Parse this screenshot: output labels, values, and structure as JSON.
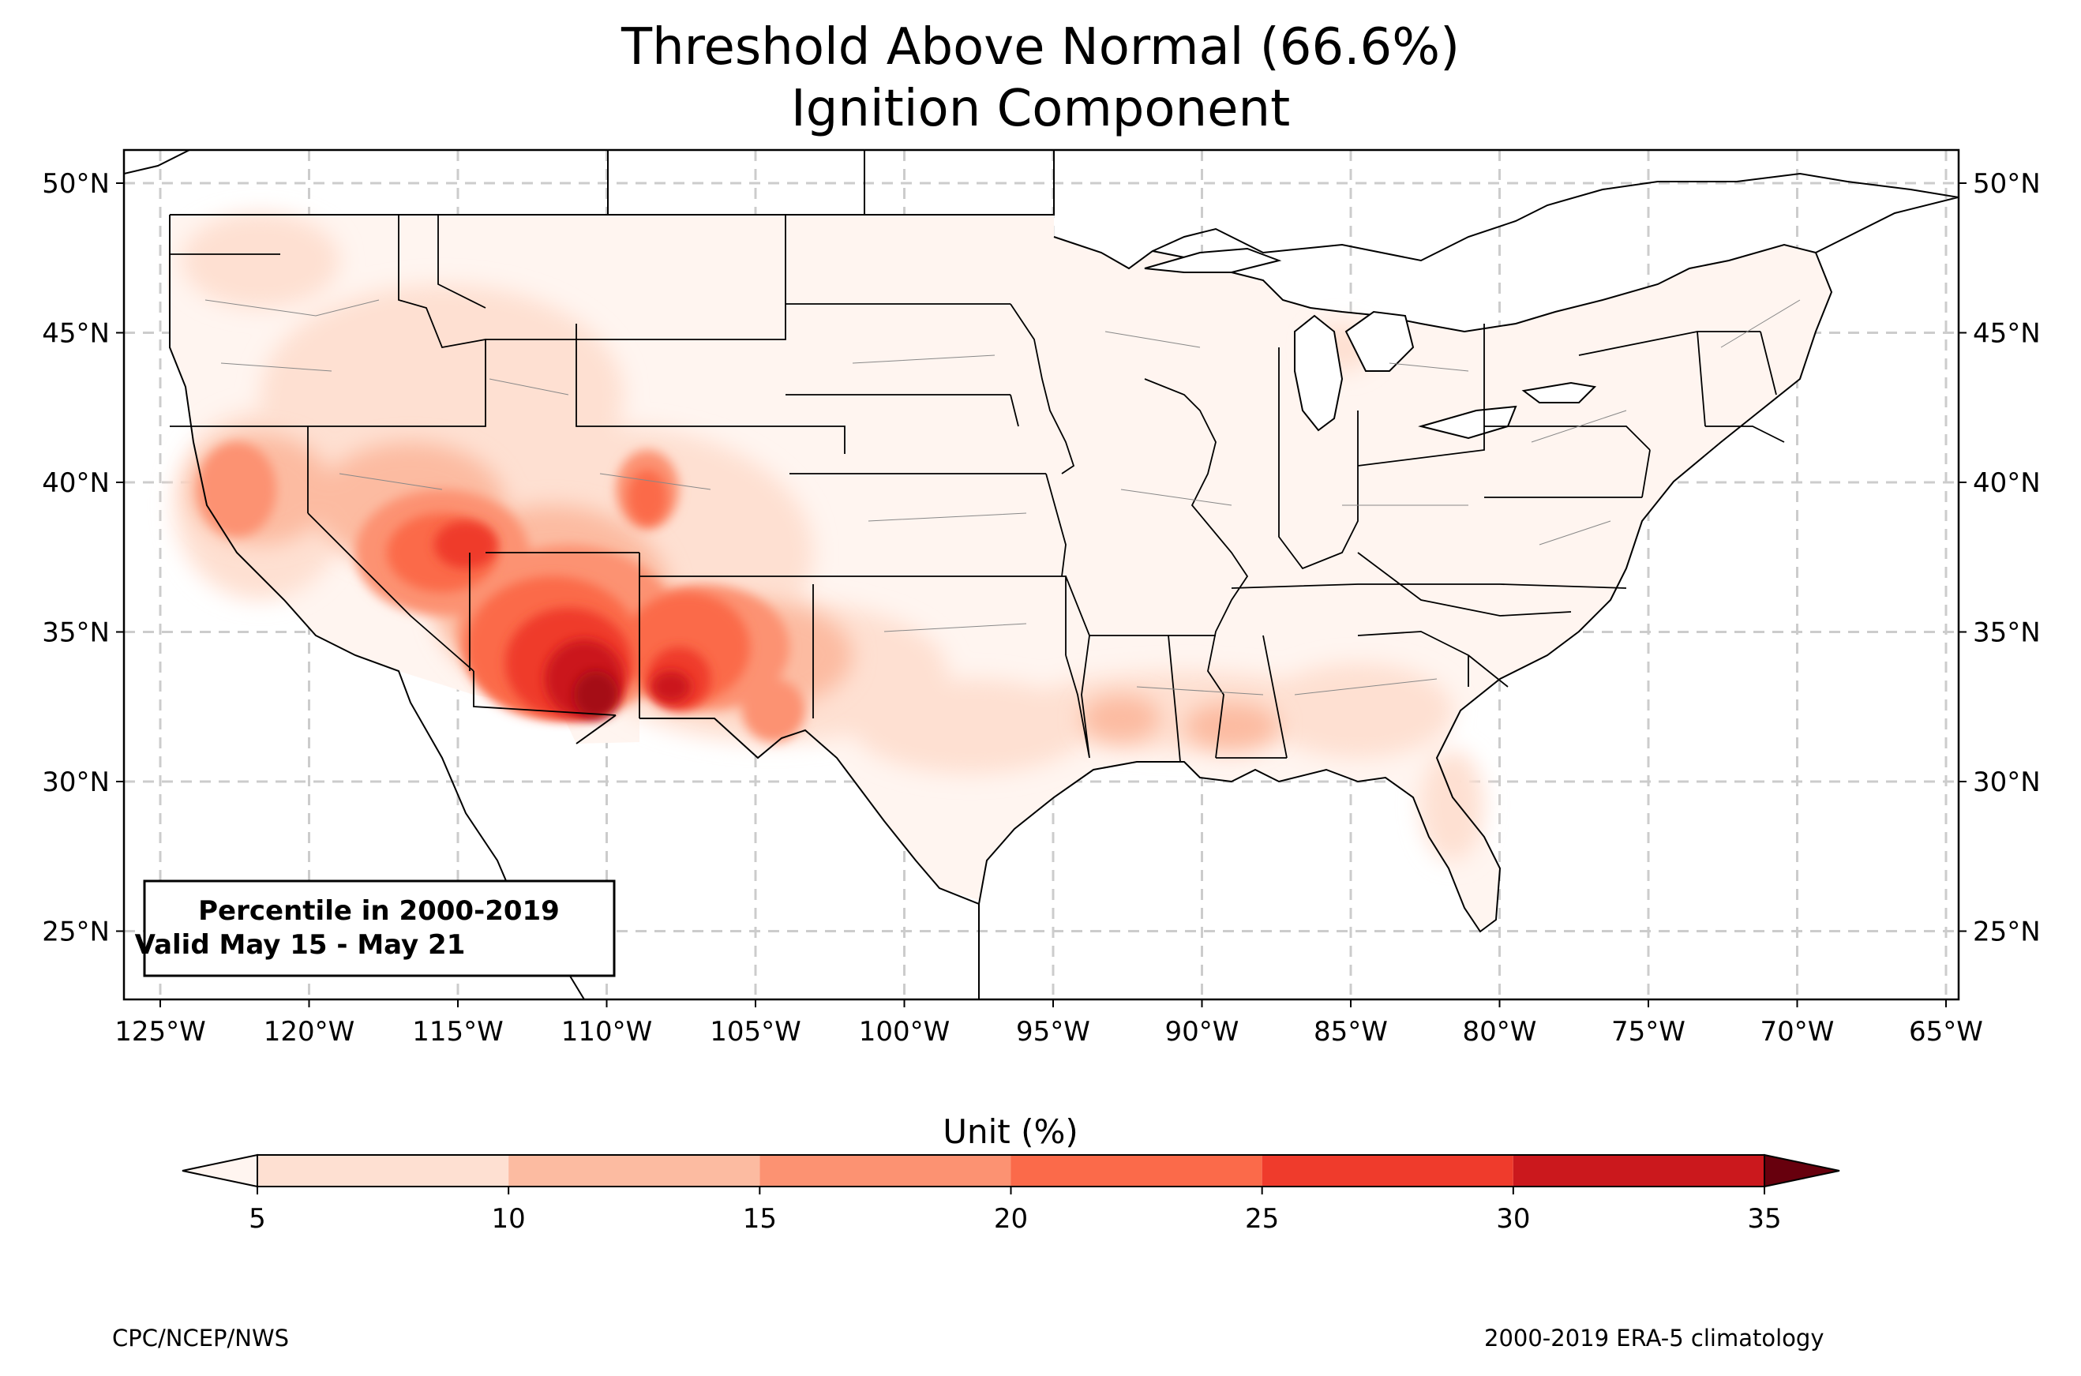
{
  "title": {
    "line1": "Threshold Above Normal (66.6%)",
    "line2": "Ignition Component"
  },
  "map": {
    "lat_ticks": [
      "50°N",
      "45°N",
      "40°N",
      "35°N",
      "30°N",
      "25°N"
    ],
    "lon_ticks": [
      "125°W",
      "120°W",
      "115°W",
      "110°W",
      "105°W",
      "100°W",
      "95°W",
      "90°W",
      "85°W",
      "80°W",
      "75°W",
      "70°W",
      "65°W"
    ],
    "annotation": {
      "line1": "Percentile in 2000-2019",
      "line2": "Valid May 15 - May 21"
    }
  },
  "colorbar": {
    "label": "Unit (%)",
    "ticks": [
      "5",
      "10",
      "15",
      "20",
      "25",
      "30",
      "35"
    ],
    "colors": [
      "#fee0d2",
      "#fcbba1",
      "#fc9272",
      "#fb6a4a",
      "#ef3b2c",
      "#cb181d",
      "#a50f15",
      "#67000d"
    ],
    "low_extend_color": "#fff5f0"
  },
  "footer": {
    "left": "CPC/NCEP/NWS",
    "right": "2000-2019 ERA-5 climatology"
  }
}
